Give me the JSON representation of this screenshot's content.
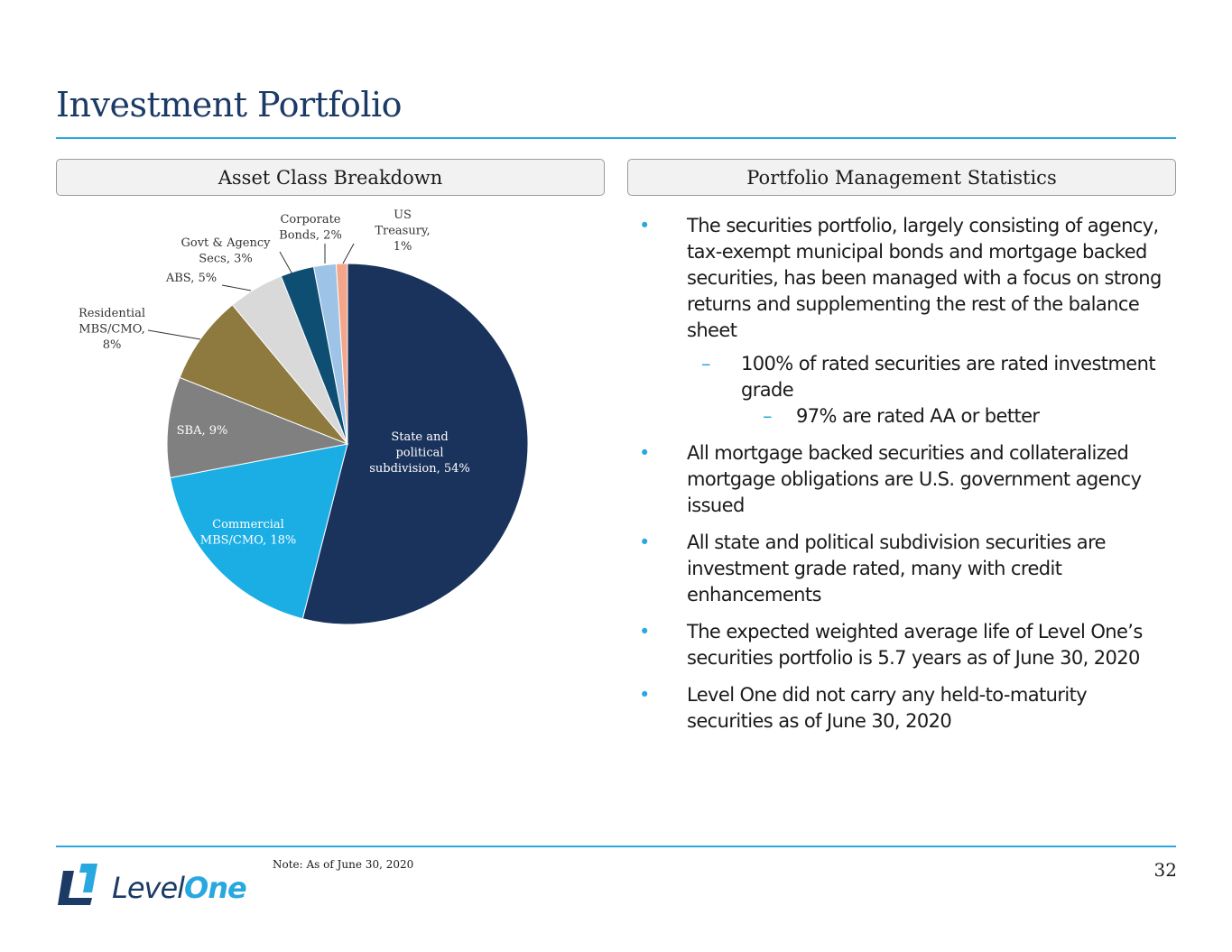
{
  "page": {
    "title": "Investment Portfolio",
    "left_header": "Asset Class Breakdown",
    "right_header": "Portfolio Management Statistics",
    "note": "Note: As of June 30, 2020",
    "page_number": "32"
  },
  "logo": {
    "word1": "Level",
    "word2": "One"
  },
  "colors": {
    "title": "#1b3a66",
    "accent": "#29a8e0"
  },
  "chart_data": {
    "type": "pie",
    "title": "",
    "slices": [
      {
        "label": "State and political subdivision",
        "value": 54,
        "display": [
          "State and",
          "political",
          "subdivision, 54%"
        ],
        "color": "#1a335c"
      },
      {
        "label": "Commercial MBS/CMO",
        "value": 18,
        "display": [
          "Commercial",
          "MBS/CMO, 18%"
        ],
        "color": "#1aaee5"
      },
      {
        "label": "SBA",
        "value": 9,
        "display": [
          "SBA, 9%"
        ],
        "color": "#808080"
      },
      {
        "label": "Residential MBS/CMO",
        "value": 8,
        "display": [
          "Residential",
          "MBS/CMO,",
          "8%"
        ],
        "color": "#8e7a3f"
      },
      {
        "label": "ABS",
        "value": 5,
        "display": [
          "ABS, 5%"
        ],
        "color": "#d9d9d9"
      },
      {
        "label": "Govt & Agency Secs",
        "value": 3,
        "display": [
          "Govt  & Agency",
          "Secs, 3%"
        ],
        "color": "#0f4e73"
      },
      {
        "label": "Corporate Bonds",
        "value": 2,
        "display": [
          "Corporate",
          "Bonds, 2%"
        ],
        "color": "#9dc3e6"
      },
      {
        "label": "US Treasury",
        "value": 1,
        "display": [
          "US",
          "Treasury,",
          "1%"
        ],
        "color": "#f4a58a"
      }
    ]
  },
  "bullets": [
    {
      "level": 1,
      "marker": "•",
      "text": "The securities portfolio, largely consisting of agency, tax-exempt municipal bonds and mortgage backed securities, has been managed with a focus on strong returns and supplementing the rest of the balance sheet"
    },
    {
      "level": 2,
      "marker": "–",
      "text": "100% of rated securities are rated investment grade"
    },
    {
      "level": 3,
      "marker": "–",
      "text": "97% are rated AA or better"
    },
    {
      "level": 1,
      "marker": "•",
      "text": "All mortgage backed securities and collateralized mortgage obligations are U.S. government agency issued"
    },
    {
      "level": 1,
      "marker": "•",
      "text": "All state and political subdivision securities are investment grade rated, many with credit enhancements"
    },
    {
      "level": 1,
      "marker": "•",
      "text": "The expected weighted average life of Level One’s securities portfolio is 5.7 years as of June 30, 2020"
    },
    {
      "level": 1,
      "marker": "•",
      "text": "Level One did not carry any held-to-maturity securities as of June 30, 2020"
    }
  ]
}
